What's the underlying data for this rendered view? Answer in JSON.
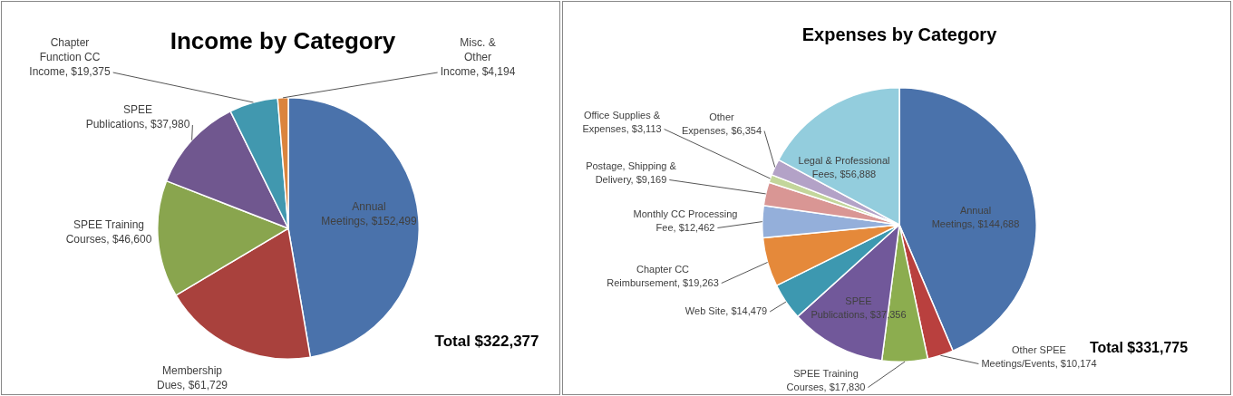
{
  "chart_data": [
    {
      "type": "pie",
      "title": "Income by Category",
      "categories": [
        "Annual Meetings",
        "Membership Dues",
        "SPEE Training Courses",
        "SPEE Publications",
        "Chapter Function CC Income",
        "Misc. & Other Income"
      ],
      "values": [
        152499,
        61729,
        46600,
        37980,
        19375,
        4194
      ],
      "value_labels": [
        "$152,499",
        "$61,729",
        "$46,600",
        "$37,980",
        "$19,375",
        "$4,194"
      ],
      "colors": [
        "#4a72ab",
        "#a9413d",
        "#89a54e",
        "#70578f",
        "#4198af",
        "#db843d"
      ],
      "annotations": [
        "Total $322,377"
      ]
    },
    {
      "type": "pie",
      "title": "Expenses by Category",
      "categories": [
        "Annual Meetings",
        "Other SPEE Meetings/Events",
        "SPEE Training Courses",
        "SPEE Publications",
        "Web Site",
        "Chapter CC Reimbursement",
        "Monthly CC Processing Fee",
        "Postage, Shipping & Delivery",
        "Office Supplies & Expenses",
        "Other Expenses",
        "Legal & Professional Fees"
      ],
      "values": [
        144688,
        10174,
        17830,
        37356,
        14479,
        19263,
        12462,
        9169,
        3113,
        6354,
        56888
      ],
      "value_labels": [
        "$144,688",
        "$10,174",
        "$17,830",
        "$37,356",
        "$14,479",
        "$19,263",
        "$12,462",
        "$9,169",
        "$3,113",
        "$6,354",
        "$56,888"
      ],
      "colors": [
        "#4a72ab",
        "#b9403e",
        "#8cad4f",
        "#71589a",
        "#3d98b0",
        "#e5893a",
        "#94afda",
        "#d99694",
        "#c3d69b",
        "#b3a2c7",
        "#93cddd"
      ],
      "annotations": [
        "Total $331,775"
      ]
    }
  ]
}
